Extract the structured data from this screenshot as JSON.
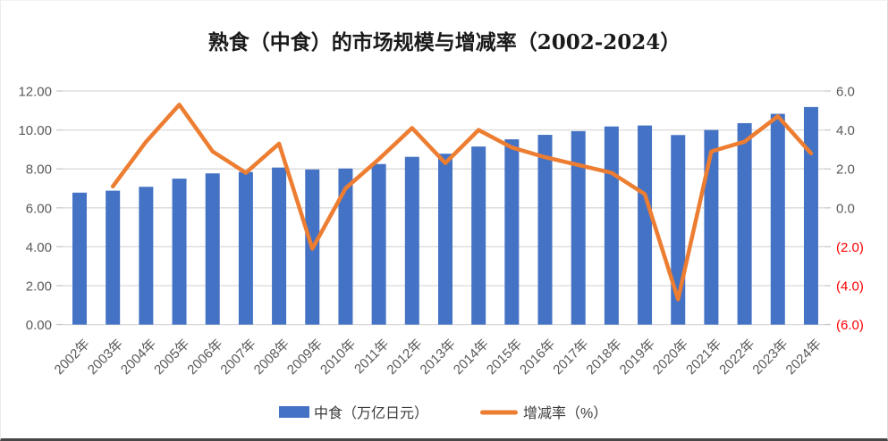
{
  "chart_data": {
    "type": "bar",
    "subtype": "combo-bar-line",
    "title": "熟食（中食）的市场规模与增减率（2002-2024）",
    "categories": [
      "2002年",
      "2003年",
      "2004年",
      "2005年",
      "2006年",
      "2007年",
      "2008年",
      "2009年",
      "2010年",
      "2011年",
      "2012年",
      "2013年",
      "2014年",
      "2015年",
      "2016年",
      "2017年",
      "2018年",
      "2019年",
      "2020年",
      "2021年",
      "2022年",
      "2023年",
      "2024年"
    ],
    "series": [
      {
        "name": "中食（万亿日元）",
        "type": "bar",
        "axis": "left",
        "color": "#4472C4",
        "values": [
          6.78,
          6.88,
          7.08,
          7.5,
          7.77,
          7.84,
          8.07,
          7.97,
          8.02,
          8.25,
          8.62,
          8.78,
          9.15,
          9.52,
          9.75,
          9.94,
          10.18,
          10.23,
          9.74,
          10.0,
          10.35,
          10.83,
          11.18
        ]
      },
      {
        "name": "增减率（%）",
        "type": "line",
        "axis": "right",
        "color": "#ED7D31",
        "values": [
          null,
          1.1,
          3.4,
          5.3,
          2.9,
          1.8,
          3.3,
          -2.1,
          1.0,
          2.5,
          4.1,
          2.3,
          4.0,
          3.1,
          2.6,
          2.2,
          1.8,
          0.7,
          -4.7,
          2.9,
          3.4,
          4.7,
          2.8
        ]
      }
    ],
    "left_axis": {
      "min": 0,
      "max": 12,
      "ticks": [
        "0.00",
        "2.00",
        "4.00",
        "6.00",
        "8.00",
        "10.00",
        "12.00"
      ]
    },
    "right_axis": {
      "min": -6,
      "max": 6,
      "ticks": [
        "(6.0)",
        "(4.0)",
        "(2.0)",
        "0.0",
        "2.0",
        "4.0",
        "6.0"
      ],
      "negative_color": "#FF0000"
    },
    "grid": true,
    "legend_position": "bottom",
    "colors": {
      "gridline": "#D9D9D9",
      "tick": "#C9C9C9",
      "axis_text": "#595959"
    }
  }
}
